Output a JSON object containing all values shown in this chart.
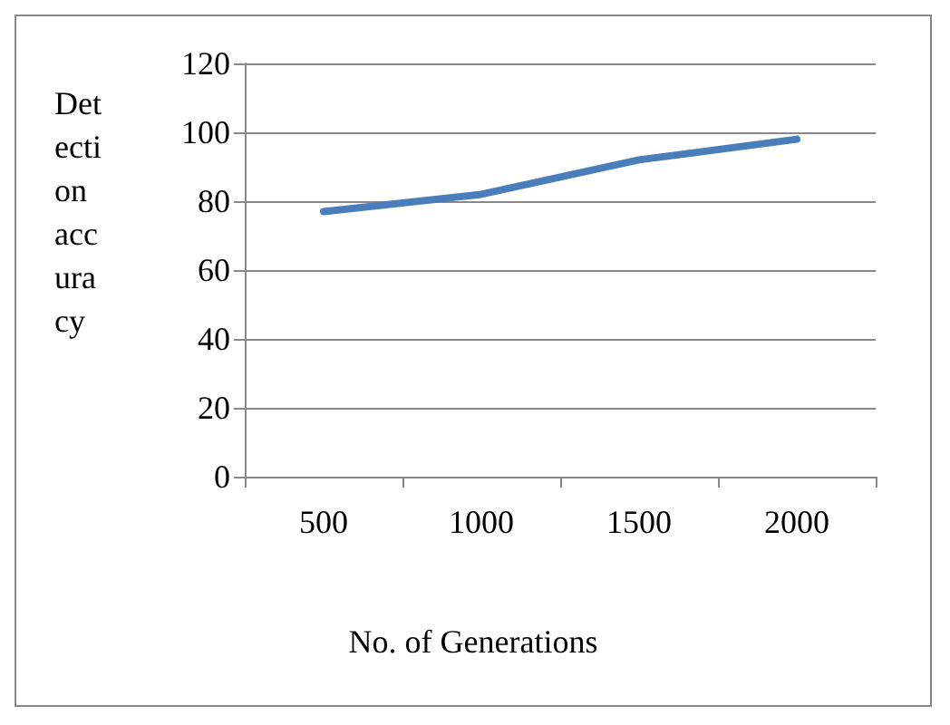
{
  "chart_data": {
    "type": "line",
    "xlabel": "No. of Generations",
    "ylabel": "Detection accuracy",
    "categories": [
      "500",
      "1000",
      "1500",
      "2000"
    ],
    "series": [
      {
        "color": "#4a7ebb",
        "values": [
          77,
          82,
          92,
          98
        ]
      }
    ],
    "ylim": [
      0,
      120
    ],
    "yticks": [
      0,
      20,
      40,
      60,
      80,
      100,
      120
    ],
    "grid": "y",
    "marker": "none",
    "line_style": "solid"
  }
}
